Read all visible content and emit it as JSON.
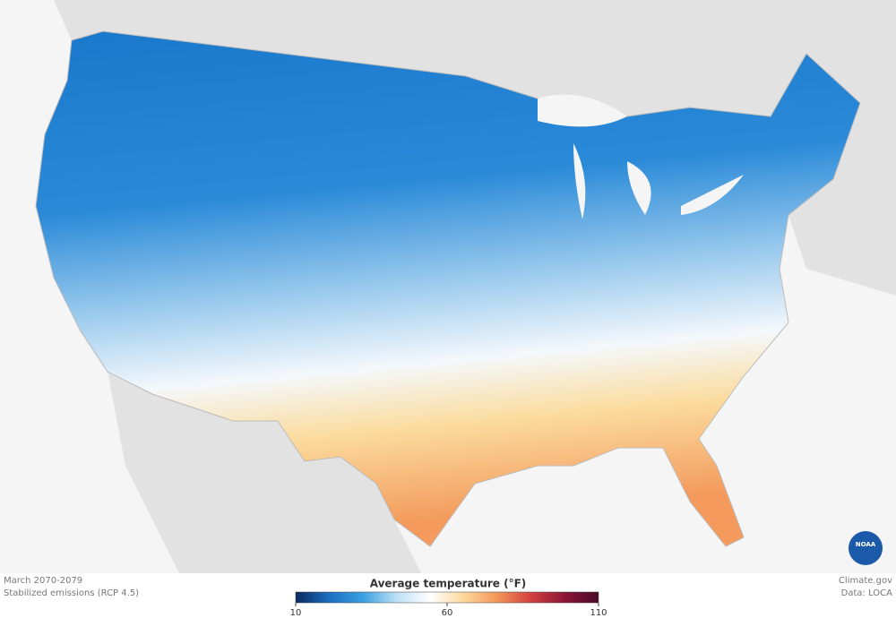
{
  "caption": {
    "period": "March 2070-2079",
    "scenario": "Stabilized emissions (RCP 4.5)"
  },
  "credits": {
    "site": "Climate.gov",
    "source": "Data: LOCA",
    "logo": "NOAA"
  },
  "legend": {
    "title": "Average temperature (°F)",
    "range": [
      10,
      110
    ],
    "ticks": [
      10,
      60,
      110
    ],
    "colors": [
      "#0b2a5e",
      "#1c6fc0",
      "#3aa0e0",
      "#bfe0f5",
      "#ffffff",
      "#fcd79a",
      "#f2955a",
      "#d2403f",
      "#8a1538",
      "#4a0a2a"
    ]
  }
}
